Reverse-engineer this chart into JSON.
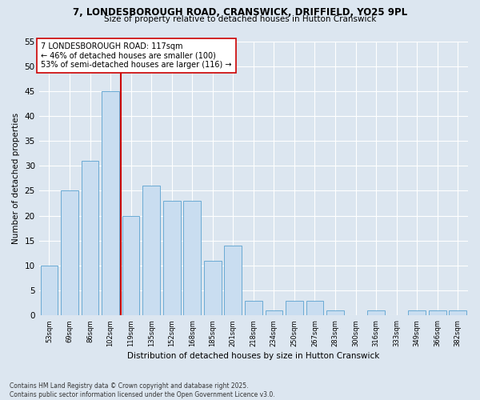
{
  "title_line1": "7, LONDESBOROUGH ROAD, CRANSWICK, DRIFFIELD, YO25 9PL",
  "title_line2": "Size of property relative to detached houses in Hutton Cranswick",
  "xlabel": "Distribution of detached houses by size in Hutton Cranswick",
  "ylabel": "Number of detached properties",
  "categories": [
    "53sqm",
    "69sqm",
    "86sqm",
    "102sqm",
    "119sqm",
    "135sqm",
    "152sqm",
    "168sqm",
    "185sqm",
    "201sqm",
    "218sqm",
    "234sqm",
    "250sqm",
    "267sqm",
    "283sqm",
    "300sqm",
    "316sqm",
    "333sqm",
    "349sqm",
    "366sqm",
    "382sqm"
  ],
  "values": [
    10,
    25,
    31,
    45,
    20,
    26,
    23,
    23,
    11,
    14,
    3,
    1,
    3,
    3,
    1,
    0,
    1,
    0,
    1,
    1,
    1
  ],
  "bar_color": "#c9ddf0",
  "bar_edge_color": "#6aaad4",
  "marker_label_line1": "7 LONDESBOROUGH ROAD: 117sqm",
  "marker_label_line2": "← 46% of detached houses are smaller (100)",
  "marker_label_line3": "53% of semi-detached houses are larger (116) →",
  "marker_color": "#cc0000",
  "bg_color": "#dce6f0",
  "grid_color": "#ffffff",
  "ylim": [
    0,
    55
  ],
  "yticks": [
    0,
    5,
    10,
    15,
    20,
    25,
    30,
    35,
    40,
    45,
    50,
    55
  ],
  "footer_line1": "Contains HM Land Registry data © Crown copyright and database right 2025.",
  "footer_line2": "Contains public sector information licensed under the Open Government Licence v3.0."
}
